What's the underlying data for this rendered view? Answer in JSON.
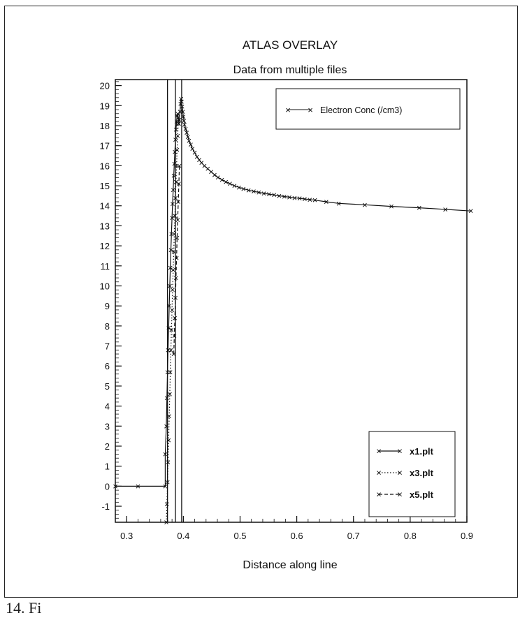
{
  "caption_fragment": "14. Fi",
  "chart_data": {
    "type": "line",
    "title": "ATLAS OVERLAY",
    "subtitle": "Data from multiple files",
    "xlabel": "Distance along line",
    "ylabel": "",
    "xlim": [
      0.28,
      0.9
    ],
    "ylim": [
      -1.8,
      20.3
    ],
    "x_ticks": [
      0.3,
      0.4,
      0.5,
      0.6,
      0.7,
      0.8,
      0.9
    ],
    "x_tick_labels": [
      "0.3",
      "0.4",
      "0.5",
      "0.6",
      "0.7",
      "0.8",
      "0.9"
    ],
    "y_ticks": [
      -1,
      0,
      1,
      2,
      3,
      4,
      5,
      6,
      7,
      8,
      9,
      10,
      11,
      12,
      13,
      14,
      15,
      16,
      17,
      18,
      19,
      20
    ],
    "y_tick_labels": [
      "-1",
      "0",
      "1",
      "2",
      "3",
      "4",
      "5",
      "6",
      "7",
      "8",
      "9",
      "10",
      "11",
      "12",
      "13",
      "14",
      "15",
      "16",
      "17",
      "18",
      "19",
      "20"
    ],
    "grid": false,
    "vertical_lines": [
      0.372,
      0.386,
      0.397
    ],
    "legend_quantity": {
      "label": "Electron Conc (/cm3)",
      "placement": "top-right"
    },
    "legend_files": {
      "placement": "bottom-right"
    },
    "series": [
      {
        "name": "x1.plt",
        "style": "solid",
        "x": [
          0.28,
          0.32,
          0.368,
          0.368,
          0.37,
          0.371,
          0.372,
          0.373,
          0.374,
          0.375,
          0.376,
          0.377,
          0.378,
          0.379,
          0.38,
          0.381,
          0.382,
          0.383,
          0.384,
          0.385,
          0.386,
          0.387,
          0.388,
          0.389,
          0.39,
          0.391,
          0.392,
          0.393,
          0.394,
          0.395,
          0.396,
          0.397,
          0.398,
          0.399,
          0.4,
          0.401,
          0.402,
          0.404,
          0.406,
          0.408,
          0.41,
          0.413,
          0.416,
          0.42,
          0.424,
          0.428,
          0.432,
          0.437,
          0.443,
          0.449,
          0.455,
          0.461,
          0.468,
          0.475,
          0.482,
          0.49,
          0.498,
          0.506,
          0.515,
          0.524,
          0.533,
          0.542,
          0.551,
          0.56,
          0.569,
          0.578,
          0.587,
          0.596,
          0.605,
          0.614,
          0.623,
          0.632,
          0.652,
          0.674,
          0.72,
          0.767,
          0.816,
          0.862,
          0.907
        ],
        "y": [
          0.0,
          0.0,
          0.0,
          1.6,
          3.0,
          4.4,
          5.7,
          6.8,
          7.9,
          9.0,
          10.0,
          10.9,
          11.8,
          12.6,
          13.4,
          14.1,
          14.8,
          15.5,
          16.1,
          16.7,
          17.3,
          17.8,
          18.2,
          18.5,
          18.6,
          18.4,
          18.1,
          18.3,
          18.7,
          19.1,
          19.35,
          19.2,
          18.95,
          18.7,
          18.45,
          18.25,
          18.05,
          17.85,
          17.65,
          17.45,
          17.25,
          17.05,
          16.85,
          16.65,
          16.45,
          16.3,
          16.15,
          16.0,
          15.85,
          15.7,
          15.55,
          15.42,
          15.3,
          15.2,
          15.1,
          15.0,
          14.92,
          14.85,
          14.78,
          14.72,
          14.67,
          14.62,
          14.58,
          14.54,
          14.5,
          14.46,
          14.43,
          14.4,
          14.37,
          14.34,
          14.31,
          14.28,
          14.2,
          14.12,
          14.05,
          13.97,
          13.9,
          13.82,
          13.74
        ]
      },
      {
        "name": "x3.plt",
        "style": "dotted",
        "x": [
          0.37,
          0.371,
          0.372,
          0.373,
          0.374,
          0.375,
          0.376,
          0.377,
          0.378,
          0.379,
          0.38,
          0.381,
          0.382,
          0.383,
          0.384,
          0.385,
          0.386,
          0.387,
          0.388,
          0.389,
          0.39,
          0.391
        ],
        "y": [
          -1.8,
          -0.9,
          0.2,
          1.2,
          2.3,
          3.5,
          4.6,
          5.7,
          6.8,
          7.8,
          8.8,
          9.8,
          10.8,
          11.7,
          12.6,
          13.5,
          14.4,
          15.2,
          16.0,
          16.8,
          17.5,
          18.1
        ]
      },
      {
        "name": "x5.plt",
        "style": "dashed",
        "x": [
          0.383,
          0.384,
          0.385,
          0.386,
          0.387,
          0.388,
          0.389,
          0.39,
          0.391,
          0.392,
          0.393
        ],
        "y": [
          6.6,
          7.5,
          8.4,
          9.4,
          10.4,
          11.4,
          12.4,
          13.3,
          14.2,
          15.1,
          16.0
        ]
      }
    ]
  }
}
